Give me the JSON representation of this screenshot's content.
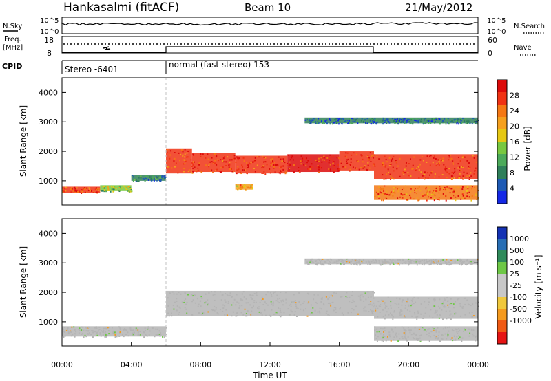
{
  "header": {
    "station": "Hankasalmi (fitACF)",
    "beam": "Beam 10",
    "date": "21/May/2012"
  },
  "strip": {
    "nsky_label": "N.Sky",
    "nsearch_label": "N.Search",
    "noise_ticks_left": [
      "10^5",
      "10^0"
    ],
    "noise_ticks_right": [
      "10^5",
      "10^0"
    ],
    "freq_label_1": "Freq.",
    "freq_label_2": "[MHz]",
    "freq_ticks": [
      "18",
      "8"
    ],
    "nave_label": "Nave",
    "nave_ticks": [
      "60",
      "0"
    ],
    "cpid_label": "CPID",
    "cpid_segments": [
      "Stereo -6401",
      "normal (fast stereo) 153"
    ]
  },
  "power_panel": {
    "ylabel": "Slant Range [km]",
    "yticks": [
      "4000",
      "3000",
      "2000",
      "1000"
    ],
    "colorbar_label": "Power [dB]",
    "colorbar_ticks": [
      "28",
      "24",
      "20",
      "16",
      "12",
      "8",
      "4"
    ]
  },
  "velocity_panel": {
    "ylabel": "Slant Range [km]",
    "yticks": [
      "4000",
      "3000",
      "2000",
      "1000"
    ],
    "colorbar_label": "Velocity [m s⁻¹]",
    "colorbar_ticks": [
      "1000",
      "500",
      "100",
      "25",
      "-25",
      "-100",
      "-500",
      "-1000"
    ]
  },
  "xaxis": {
    "label": "Time UT",
    "ticks": [
      "00:00",
      "04:00",
      "08:00",
      "12:00",
      "16:00",
      "20:00",
      "00:00"
    ]
  },
  "colors": {
    "power_scale": [
      "#1428e6",
      "#1e5ab4",
      "#2f7f5a",
      "#4caa5a",
      "#78c840",
      "#e6c814",
      "#f5a01e",
      "#f57814",
      "#f03214",
      "#dc0a0a"
    ],
    "velocity_scale": [
      "#1432b4",
      "#286eb4",
      "#2f8a5a",
      "#6ec846",
      "#c8c8c8",
      "#c8c8c8",
      "#f0c83c",
      "#f59a1e",
      "#f05a14",
      "#e61414"
    ],
    "ground_scatter": "#b4b4b4"
  },
  "chart_data": {
    "type": "heatmap",
    "x_range_hours": [
      0,
      24
    ],
    "y_range_km": [
      180,
      4500
    ],
    "mode_change_hour": 6.0,
    "power_bands_db": [
      {
        "t0": 0.0,
        "t1": 2.2,
        "r0": 600,
        "r1": 800,
        "db": 24
      },
      {
        "t0": 2.2,
        "t1": 4.0,
        "r0": 650,
        "r1": 850,
        "db": 14
      },
      {
        "t0": 4.0,
        "t1": 6.0,
        "r0": 1000,
        "r1": 1200,
        "db": 8
      },
      {
        "t0": 6.0,
        "t1": 7.5,
        "r0": 1250,
        "r1": 2100,
        "db": 24
      },
      {
        "t0": 7.5,
        "t1": 10.0,
        "r0": 1300,
        "r1": 1950,
        "db": 26
      },
      {
        "t0": 10.0,
        "t1": 13.0,
        "r0": 1250,
        "r1": 1850,
        "db": 26
      },
      {
        "t0": 13.0,
        "t1": 16.0,
        "r0": 1300,
        "r1": 1900,
        "db": 27
      },
      {
        "t0": 16.0,
        "t1": 18.0,
        "r0": 1350,
        "r1": 2000,
        "db": 26
      },
      {
        "t0": 18.0,
        "t1": 24.0,
        "r0": 1050,
        "r1": 1900,
        "db": 25
      },
      {
        "t0": 18.0,
        "t1": 24.0,
        "r0": 350,
        "r1": 850,
        "db": 23
      },
      {
        "t0": 10.0,
        "t1": 11.0,
        "r0": 700,
        "r1": 900,
        "db": 20
      },
      {
        "t0": 14.0,
        "t1": 24.0,
        "r0": 2950,
        "r1": 3150,
        "db": 6
      }
    ],
    "velocity_bands_ms": [
      {
        "t0": 0.0,
        "t1": 6.0,
        "r0": 500,
        "r1": 850,
        "v": 0
      },
      {
        "t0": 6.0,
        "t1": 18.0,
        "r0": 1200,
        "r1": 2050,
        "v": 0
      },
      {
        "t0": 18.0,
        "t1": 24.0,
        "r0": 1100,
        "r1": 1850,
        "v": 0
      },
      {
        "t0": 18.0,
        "t1": 24.0,
        "r0": 350,
        "r1": 850,
        "v": 0
      },
      {
        "t0": 14.0,
        "t1": 24.0,
        "r0": 2950,
        "r1": 3150,
        "v": 0
      }
    ]
  }
}
